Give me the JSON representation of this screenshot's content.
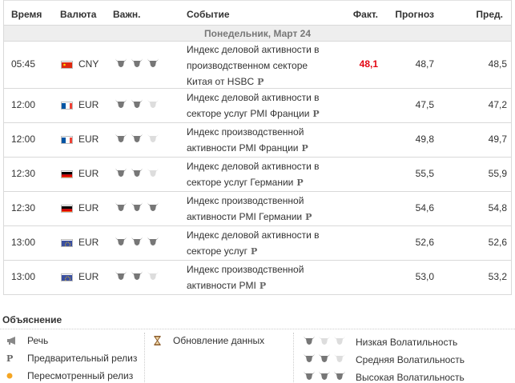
{
  "header": {
    "time": "Время",
    "currency": "Валюта",
    "importance": "Важн.",
    "event": "Событие",
    "actual": "Факт.",
    "forecast": "Прогноз",
    "previous": "Пред."
  },
  "day_label": "Понедельник, Март 24",
  "colors": {
    "actual_highlight": "#e30613",
    "bull_full": "#777777",
    "bull_empty": "#dddddd"
  },
  "rows": [
    {
      "time": "05:45",
      "flag": "china-flag",
      "currency": "CNY",
      "importance": 3,
      "event": "Индекс деловой активности в производственном секторе Китая от HSBC",
      "prelim": "P",
      "actual": "48,1",
      "forecast": "48,7",
      "previous": "48,5"
    },
    {
      "time": "12:00",
      "flag": "france-flag",
      "currency": "EUR",
      "importance": 2,
      "event": "Индекс деловой активности в секторе услуг PMI Франции",
      "prelim": "P",
      "actual": "",
      "forecast": "47,5",
      "previous": "47,2"
    },
    {
      "time": "12:00",
      "flag": "france-flag",
      "currency": "EUR",
      "importance": 2,
      "event": "Индекс производственной активности PMI Франции",
      "prelim": "P",
      "actual": "",
      "forecast": "49,8",
      "previous": "49,7"
    },
    {
      "time": "12:30",
      "flag": "germany-flag",
      "currency": "EUR",
      "importance": 2,
      "event": "Индекс деловой активности в секторе услуг Германии",
      "prelim": "P",
      "actual": "",
      "forecast": "55,5",
      "previous": "55,9"
    },
    {
      "time": "12:30",
      "flag": "germany-flag",
      "currency": "EUR",
      "importance": 3,
      "event": "Индекс производственной активности PMI Германии",
      "prelim": "P",
      "actual": "",
      "forecast": "54,6",
      "previous": "54,8"
    },
    {
      "time": "13:00",
      "flag": "eu-flag",
      "currency": "EUR",
      "importance": 3,
      "event": "Индекс деловой активности в секторе услуг",
      "prelim": "P",
      "actual": "",
      "forecast": "52,6",
      "previous": "52,6"
    },
    {
      "time": "13:00",
      "flag": "eu-flag",
      "currency": "EUR",
      "importance": 2,
      "event": "Индекс производственной активности PMI",
      "prelim": "P",
      "actual": "",
      "forecast": "53,0",
      "previous": "53,2"
    }
  ],
  "legend": {
    "title": "Объяснение",
    "speech": "Речь",
    "preliminary": "Предварительный релиз",
    "revised": "Пересмотренный релиз",
    "data_update": "Обновление данных",
    "low_vol": "Низкая Волатильность",
    "mid_vol": "Средняя Волатильность",
    "high_vol": "Высокая Волатильность",
    "p_symbol": "P"
  }
}
